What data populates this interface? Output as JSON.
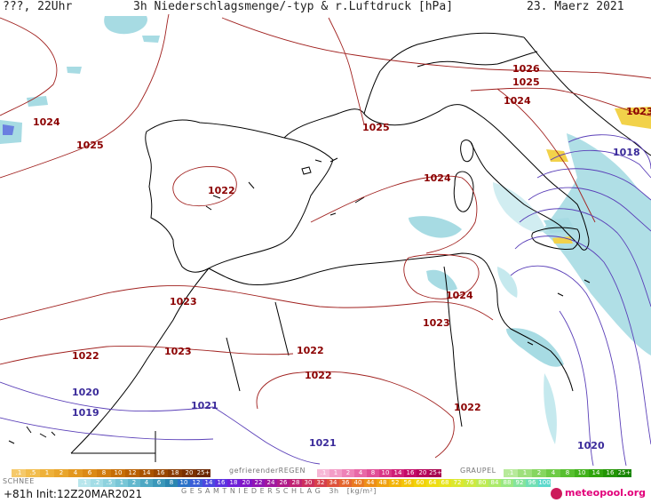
{
  "header": {
    "left": "???, 22Uhr",
    "title": "3h Niederschlagsmenge/-typ & r.Luftdruck [hPa]",
    "date": "23. Maerz 2021"
  },
  "isobar_labels": [
    {
      "id": "l1026",
      "text": "1026",
      "color": "red"
    },
    {
      "id": "l1025a",
      "text": "1025",
      "color": "red"
    },
    {
      "id": "l1024a",
      "text": "1024",
      "color": "red"
    },
    {
      "id": "l1023a",
      "text": "1023",
      "color": "red"
    },
    {
      "id": "l1018",
      "text": "1018",
      "color": "blue"
    },
    {
      "id": "l1024b",
      "text": "1024",
      "color": "red"
    },
    {
      "id": "l1025b",
      "text": "1025",
      "color": "red"
    },
    {
      "id": "l1025c",
      "text": "1025",
      "color": "red"
    },
    {
      "id": "l1022a",
      "text": "1022",
      "color": "red"
    },
    {
      "id": "l1024c",
      "text": "1024",
      "color": "red"
    },
    {
      "id": "l1024d",
      "text": "1024",
      "color": "red"
    },
    {
      "id": "l1023b",
      "text": "1023",
      "color": "red"
    },
    {
      "id": "l1023c",
      "text": "1023",
      "color": "red"
    },
    {
      "id": "l1023d",
      "text": "1023",
      "color": "red"
    },
    {
      "id": "l1022b",
      "text": "1022",
      "color": "red"
    },
    {
      "id": "l1022c",
      "text": "1022",
      "color": "red"
    },
    {
      "id": "l1022d",
      "text": "1022",
      "color": "red"
    },
    {
      "id": "l1022e",
      "text": "1022",
      "color": "red"
    },
    {
      "id": "l1020a",
      "text": "1020",
      "color": "blue"
    },
    {
      "id": "l1019",
      "text": "1019",
      "color": "blue"
    },
    {
      "id": "l1021a",
      "text": "1021",
      "color": "blue"
    },
    {
      "id": "l1021b",
      "text": "1021",
      "color": "blue"
    },
    {
      "id": "l1020b",
      "text": "1020",
      "color": "blue"
    }
  ],
  "legend": {
    "snow_title": "SCHNEE",
    "freezing_title": "gefrierenderREGEN",
    "graupel_title": "GRAUPEL",
    "total_title": "G E S A M T N I E D E R S C H L A G   3h   [kg/m²]",
    "snow_scale": [
      ".1",
      ".5",
      "1",
      "2",
      "4",
      "6",
      "8",
      "10",
      "12",
      "14",
      "16",
      "18",
      "20",
      "25+"
    ],
    "freezing_scale": [
      ".1",
      "1",
      "2",
      "4",
      "8",
      "10",
      "14",
      "16",
      "20",
      "25+"
    ],
    "graupel_scale": [
      ".1",
      "1",
      "2",
      "4",
      "8",
      "10",
      "14",
      "16",
      "25+"
    ],
    "total_scale": [
      ".1",
      ".2",
      ".5",
      "1",
      "2",
      "4",
      "6",
      "8",
      "10",
      "12",
      "14",
      "16",
      "18",
      "20",
      "22",
      "24",
      "26",
      "28",
      "30",
      "32",
      "34",
      "36",
      "40",
      "44",
      "48",
      "52",
      "56",
      "60",
      "64",
      "68",
      "72",
      "76",
      "80",
      "84",
      "88",
      "92",
      "96",
      "100"
    ],
    "colors": {
      "snow": [
        "#f5c96b",
        "#f2bd4d",
        "#eeb13a",
        "#e9a52b",
        "#e3971f",
        "#dc8a15",
        "#d27c0d",
        "#c66e06",
        "#b96001",
        "#a95300",
        "#994700",
        "#893b00",
        "#7a3000",
        "#6a2600"
      ],
      "freezing": [
        "#f7b7d6",
        "#f39dc7",
        "#ee82b7",
        "#e868a7",
        "#e14e97",
        "#d93687",
        "#cf1f77",
        "#c40a68",
        "#b6005a",
        "#a6004d"
      ],
      "graupel": [
        "#b7ea9a",
        "#9ee07c",
        "#86d660",
        "#6ecb46",
        "#57bf2f",
        "#42b21c",
        "#30a40d",
        "#229503",
        "#178500"
      ],
      "total": [
        "#b8e6ec",
        "#a3dde6",
        "#8ed2de",
        "#78c6d6",
        "#62b8ce",
        "#4ea8c4",
        "#3b98ba",
        "#2a86b0",
        "#2a72c8",
        "#3a5ed8",
        "#4b48e0",
        "#5c32e0",
        "#6e1fd8",
        "#8016c8",
        "#9016b4",
        "#a0169e",
        "#b01a88",
        "#c02472",
        "#cc305e",
        "#d6404c",
        "#de523c",
        "#e4662e",
        "#e97a22",
        "#ed8e18",
        "#f0a210",
        "#f2b40a",
        "#f3c508",
        "#f2d30a",
        "#eedd12",
        "#e6e41e",
        "#dbe82e",
        "#cdea40",
        "#bdeb54",
        "#abea6a",
        "#98e882",
        "#84e49c",
        "#70dfb4",
        "#5cd9cc"
      ]
    }
  },
  "footer": {
    "run": "+81h Init:12Z20MAR2021",
    "logo": "meteopool.org"
  }
}
